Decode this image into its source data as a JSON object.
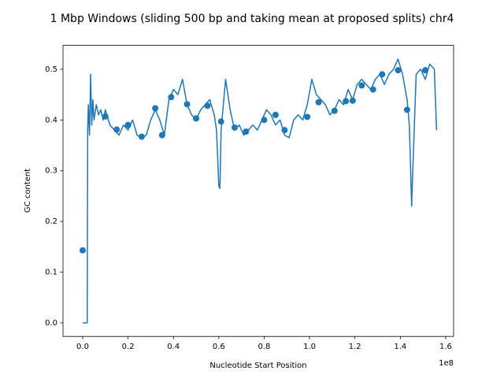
{
  "chart_data": {
    "type": "line",
    "title": "1 Mbp Windows (sliding 500 bp and taking mean at proposed splits) chr4",
    "x_label": "Nucleotide Start Position",
    "y_label": "GC content",
    "x_offset_label": "1e8",
    "color": "#1f77b4",
    "x": [
      0,
      2000000,
      2200000,
      2500000,
      3000000,
      3500000,
      4000000,
      4500000,
      5000000,
      6000000,
      7000000,
      8000000,
      9000000,
      10000000,
      12000000,
      14000000,
      16000000,
      18000000,
      20000000,
      22000000,
      24000000,
      26000000,
      28000000,
      30000000,
      32000000,
      34000000,
      36000000,
      38000000,
      40000000,
      42000000,
      44000000,
      46000000,
      48000000,
      50000000,
      52000000,
      54000000,
      56000000,
      58000000,
      59000000,
      60000000,
      60500000,
      61000000,
      63000000,
      65000000,
      67000000,
      69000000,
      71000000,
      73000000,
      75000000,
      77000000,
      79000000,
      81000000,
      83000000,
      85000000,
      87000000,
      89000000,
      91000000,
      93000000,
      95000000,
      97000000,
      99000000,
      101000000,
      103000000,
      105000000,
      107000000,
      109000000,
      111000000,
      113000000,
      115000000,
      117000000,
      119000000,
      121000000,
      123000000,
      125000000,
      127000000,
      129000000,
      131000000,
      133000000,
      135000000,
      137000000,
      139000000,
      141000000,
      143000000,
      144000000,
      145000000,
      145500000,
      147000000,
      149000000,
      151000000,
      153000000,
      155000000,
      156000000
    ],
    "values": [
      0.0,
      0.0,
      0.38,
      0.43,
      0.37,
      0.49,
      0.39,
      0.44,
      0.4,
      0.43,
      0.41,
      0.42,
      0.4,
      0.42,
      0.39,
      0.38,
      0.37,
      0.39,
      0.38,
      0.4,
      0.37,
      0.365,
      0.37,
      0.4,
      0.42,
      0.4,
      0.37,
      0.44,
      0.46,
      0.45,
      0.48,
      0.43,
      0.41,
      0.4,
      0.42,
      0.43,
      0.44,
      0.41,
      0.38,
      0.27,
      0.265,
      0.38,
      0.48,
      0.42,
      0.38,
      0.39,
      0.37,
      0.38,
      0.39,
      0.38,
      0.4,
      0.42,
      0.41,
      0.39,
      0.4,
      0.37,
      0.365,
      0.4,
      0.41,
      0.4,
      0.43,
      0.48,
      0.45,
      0.44,
      0.43,
      0.41,
      0.42,
      0.44,
      0.43,
      0.46,
      0.44,
      0.47,
      0.48,
      0.47,
      0.46,
      0.48,
      0.49,
      0.47,
      0.49,
      0.5,
      0.52,
      0.49,
      0.44,
      0.39,
      0.23,
      0.3,
      0.49,
      0.5,
      0.48,
      0.51,
      0.5,
      0.38
    ],
    "points": {
      "x": [
        0,
        10000000,
        15000000,
        20000000,
        26000000,
        32000000,
        35000000,
        39000000,
        46000000,
        50000000,
        55000000,
        61000000,
        67000000,
        72000000,
        80000000,
        85000000,
        89000000,
        99000000,
        104000000,
        111000000,
        116000000,
        119000000,
        123000000,
        128000000,
        132000000,
        139000000,
        143000000,
        151000000
      ],
      "values": [
        0.143,
        0.407,
        0.381,
        0.39,
        0.367,
        0.423,
        0.37,
        0.445,
        0.431,
        0.403,
        0.428,
        0.397,
        0.385,
        0.377,
        0.4,
        0.41,
        0.38,
        0.406,
        0.435,
        0.418,
        0.437,
        0.438,
        0.468,
        0.46,
        0.49,
        0.498,
        0.42,
        0.498
      ]
    },
    "xlim": [
      -8680000,
      163500000
    ],
    "xticks": [
      {
        "value": 0,
        "label": "0.0"
      },
      {
        "value": 20000000,
        "label": "0.2"
      },
      {
        "value": 40000000,
        "label": "0.4"
      },
      {
        "value": 60000000,
        "label": "0.6"
      },
      {
        "value": 80000000,
        "label": "0.8"
      },
      {
        "value": 100000000,
        "label": "1.0"
      },
      {
        "value": 120000000,
        "label": "1.2"
      },
      {
        "value": 140000000,
        "label": "1.4"
      },
      {
        "value": 160000000,
        "label": "1.6"
      }
    ],
    "ylim": [
      -0.0267,
      0.547
    ],
    "yticks": [
      {
        "value": 0,
        "label": "0.0"
      },
      0.1,
      0.2,
      0.3,
      0.4,
      0.5
    ]
  }
}
